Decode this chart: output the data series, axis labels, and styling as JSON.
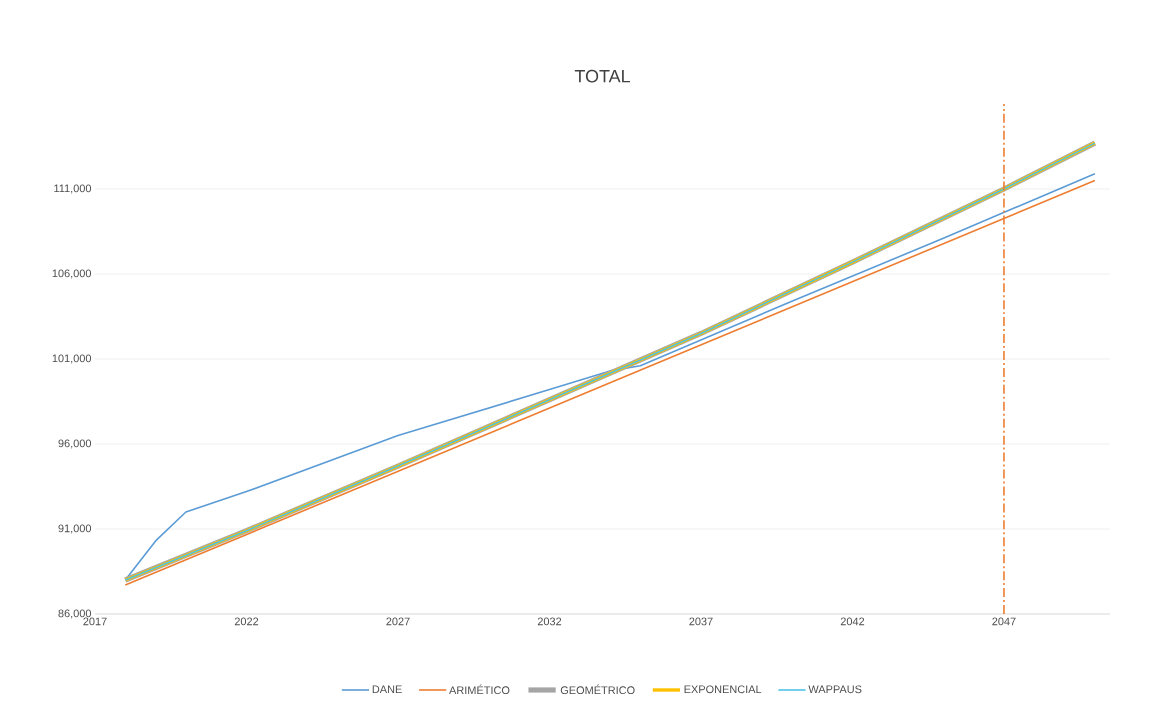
{
  "chart_data": {
    "type": "line",
    "title": "TOTAL",
    "xlim": [
      2017,
      2050.5
    ],
    "xticks": [
      2017,
      2022,
      2027,
      2032,
      2037,
      2042,
      2047
    ],
    "ylim": [
      86000,
      116000
    ],
    "yticks": [
      {
        "value": 86000,
        "label": "86,000"
      },
      {
        "value": 91000,
        "label": "91,000"
      },
      {
        "value": 96000,
        "label": "96,000"
      },
      {
        "value": 101000,
        "label": "101,000"
      },
      {
        "value": 106000,
        "label": "106,000"
      },
      {
        "value": 111000,
        "label": "111,000"
      }
    ],
    "grid": "y",
    "legend": "bottom",
    "marker": "none",
    "line_style": "solid",
    "ref_lines": [
      {
        "axis": "x",
        "value": 2047,
        "color": "#ed7d31",
        "line_style": "dashdot"
      }
    ],
    "series": [
      {
        "name": "DANE",
        "color": "#5b9bd5",
        "x": [
          2018,
          2019,
          2020,
          2022,
          2027,
          2032,
          2034,
          2035,
          2040,
          2045,
          2050
        ],
        "values": [
          88000,
          90300,
          92000,
          93200,
          96500,
          99200,
          100300,
          100600,
          104400,
          108100,
          111900
        ]
      },
      {
        "name": "ARIMÉTICO",
        "color": "#ed7d31",
        "x": [
          2018,
          2034,
          2050
        ],
        "values": [
          87700,
          99600,
          111500
        ]
      },
      {
        "name": "GEOMÉTRICO",
        "color": "#a5a5a5",
        "x": [
          2018,
          2022,
          2027,
          2032,
          2037,
          2042,
          2047,
          2050
        ],
        "values": [
          88000,
          90900,
          94700,
          98600,
          102500,
          106700,
          111000,
          113700
        ]
      },
      {
        "name": "EXPONENCIAL",
        "color": "#ffc000",
        "x": [
          2018,
          2022,
          2027,
          2032,
          2037,
          2042,
          2047,
          2050
        ],
        "values": [
          88000,
          90900,
          94700,
          98600,
          102500,
          106700,
          111000,
          113700
        ]
      },
      {
        "name": "WAPPAUS",
        "color": "#4dc3e8",
        "x": [
          2018,
          2022,
          2027,
          2032,
          2037,
          2042,
          2047,
          2050
        ],
        "values": [
          88000,
          90900,
          94700,
          98600,
          102500,
          106700,
          111000,
          113700
        ]
      }
    ]
  }
}
